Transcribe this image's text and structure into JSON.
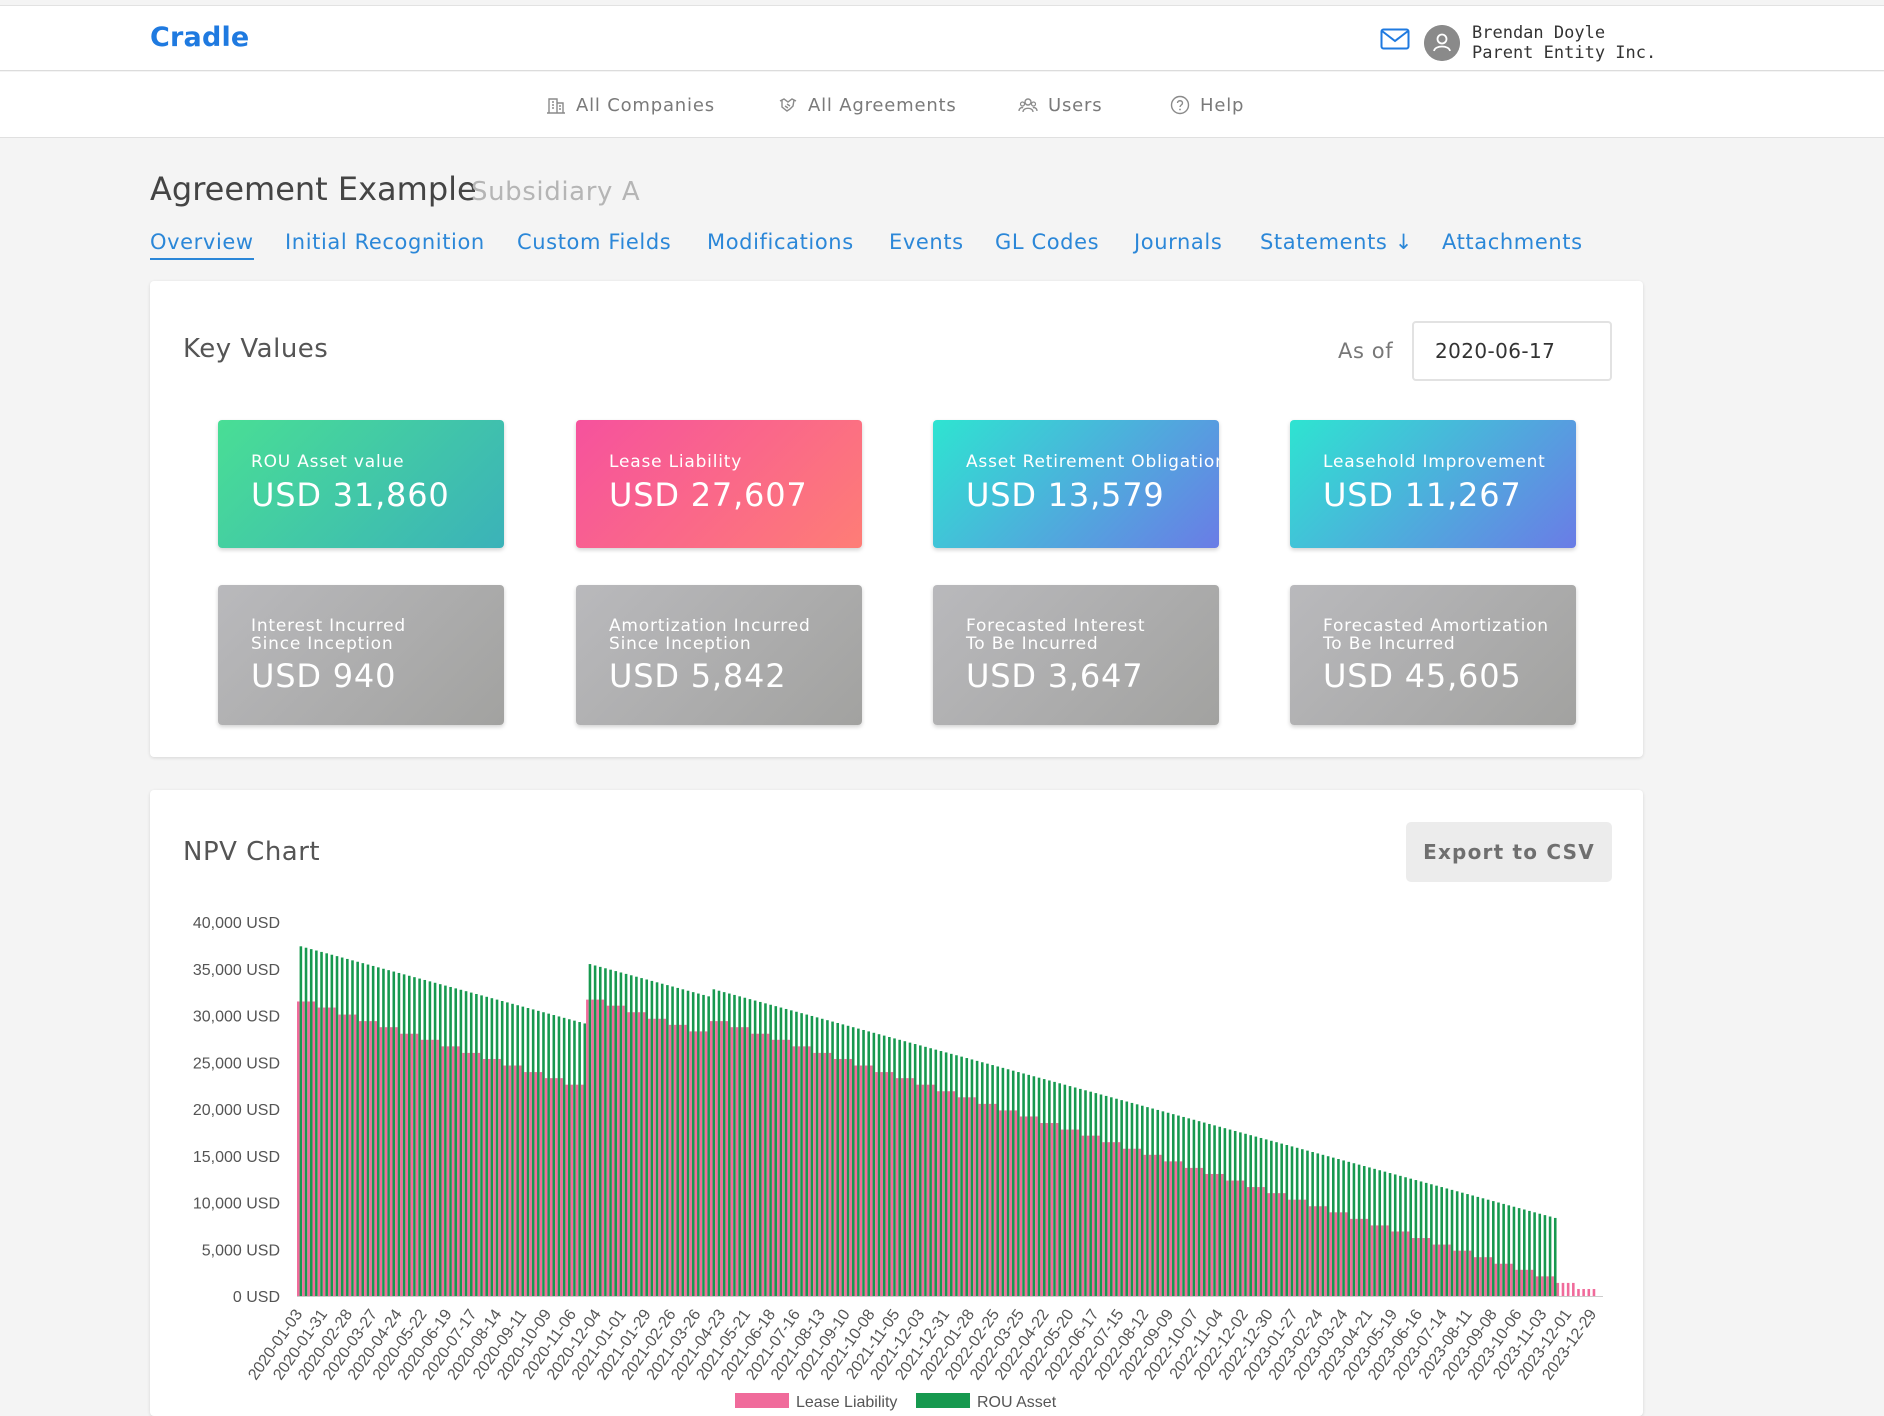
{
  "app": {
    "logo": "Cradle",
    "user_name": "Brendan Doyle",
    "user_org": "Parent Entity Inc."
  },
  "nav": {
    "items": [
      {
        "label": "All Companies",
        "icon": "building-icon"
      },
      {
        "label": "All Agreements",
        "icon": "handshake-icon"
      },
      {
        "label": "Users",
        "icon": "users-icon"
      },
      {
        "label": "Help",
        "icon": "help-circle-icon"
      }
    ]
  },
  "page": {
    "title": "Agreement Example",
    "subtitle": "Subsidiary A"
  },
  "tabs": [
    {
      "label": "Overview",
      "active": true
    },
    {
      "label": "Initial Recognition"
    },
    {
      "label": "Custom Fields"
    },
    {
      "label": "Modifications"
    },
    {
      "label": "Events"
    },
    {
      "label": "GL Codes"
    },
    {
      "label": "Journals"
    },
    {
      "label": "Statements ↓"
    },
    {
      "label": "Attachments"
    }
  ],
  "key_values": {
    "title": "Key Values",
    "as_of_label": "As of",
    "as_of_date": "2020-06-17",
    "cards": [
      {
        "label": "ROU Asset value",
        "value": "USD 31,860",
        "style": "green"
      },
      {
        "label": "Lease Liability",
        "value": "USD 27,607",
        "style": "pink"
      },
      {
        "label": "Asset Retirement Obligation",
        "value": "USD 13,579",
        "style": "blue"
      },
      {
        "label": "Leasehold Improvement",
        "value": "USD 11,267",
        "style": "blue"
      },
      {
        "label": "Interest Incurred\nSince Inception",
        "value": "USD 940",
        "style": "gray"
      },
      {
        "label": "Amortization Incurred\nSince Inception",
        "value": "USD 5,842",
        "style": "gray"
      },
      {
        "label": "Forecasted Interest\nTo Be Incurred",
        "value": "USD 3,647",
        "style": "gray"
      },
      {
        "label": "Forecasted Amortization\nTo Be Incurred",
        "value": "USD 45,605",
        "style": "gray"
      }
    ]
  },
  "npv": {
    "title": "NPV Chart",
    "export_label": "Export to CSV"
  },
  "colors": {
    "brand": "#1f7ae0",
    "tab": "#2b87d8",
    "lease_liability": "#f06b9b",
    "rou_asset": "#17994f"
  },
  "chart_data": {
    "type": "bar",
    "ylim": [
      0,
      40000
    ],
    "y_ticks": [
      "0 USD",
      "5,000 USD",
      "10,000 USD",
      "15,000 USD",
      "20,000 USD",
      "25,000 USD",
      "30,000 USD",
      "35,000 USD",
      "40,000 USD"
    ],
    "y_tick_values": [
      0,
      5000,
      10000,
      15000,
      20000,
      25000,
      30000,
      35000,
      40000
    ],
    "x_tick_labels": [
      "2020-01-03",
      "2020-01-31",
      "2020-02-28",
      "2020-03-27",
      "2020-04-24",
      "2020-05-22",
      "2020-06-19",
      "2020-07-17",
      "2020-08-14",
      "2020-09-11",
      "2020-10-09",
      "2020-11-06",
      "2020-12-04",
      "2021-01-01",
      "2021-01-29",
      "2021-02-26",
      "2021-03-26",
      "2021-04-23",
      "2021-05-21",
      "2021-06-18",
      "2021-07-16",
      "2021-08-13",
      "2021-09-10",
      "2021-10-08",
      "2021-11-05",
      "2021-12-03",
      "2021-12-31",
      "2022-01-28",
      "2022-02-25",
      "2022-03-25",
      "2022-04-22",
      "2022-05-20",
      "2022-06-17",
      "2022-07-15",
      "2022-08-12",
      "2022-09-09",
      "2022-10-07",
      "2022-11-04",
      "2022-12-02",
      "2022-12-30",
      "2023-01-27",
      "2023-02-24",
      "2023-03-24",
      "2023-04-21",
      "2023-05-19",
      "2023-06-16",
      "2023-07-14",
      "2023-08-11",
      "2023-09-08",
      "2023-10-06",
      "2023-11-03",
      "2023-12-01",
      "2023-12-29"
    ],
    "series": [
      {
        "name": "Lease Liability",
        "color": "#f06b9b",
        "values": [
          31500,
          31500,
          31500,
          31500,
          30850,
          30850,
          30850,
          30850,
          30100,
          30100,
          30100,
          30100,
          29400,
          29400,
          29400,
          29400,
          28750,
          28750,
          28750,
          28750,
          28050,
          28050,
          28050,
          28050,
          27400,
          27400,
          27400,
          27400,
          26700,
          26700,
          26700,
          26700,
          26000,
          26000,
          26000,
          26000,
          25350,
          25350,
          25350,
          25350,
          24650,
          24650,
          24650,
          24650,
          23950,
          23950,
          23950,
          23950,
          23300,
          23300,
          23300,
          23300,
          22600,
          22600,
          22600,
          22600,
          31700,
          31700,
          31700,
          31700,
          31050,
          31050,
          31050,
          31050,
          30350,
          30350,
          30350,
          30350,
          29650,
          29650,
          29650,
          29650,
          29000,
          29000,
          29000,
          29000,
          28300,
          28300,
          28300,
          28300,
          29400,
          29400,
          29400,
          29400,
          28750,
          28750,
          28750,
          28750,
          28050,
          28050,
          28050,
          28050,
          27400,
          27400,
          27400,
          27400,
          26700,
          26700,
          26700,
          26700,
          26000,
          26000,
          26000,
          26000,
          25350,
          25350,
          25350,
          25350,
          24650,
          24650,
          24650,
          24650,
          23950,
          23950,
          23950,
          23950,
          23300,
          23300,
          23300,
          23300,
          22600,
          22600,
          22600,
          22600,
          21900,
          21900,
          21900,
          21900,
          21250,
          21250,
          21250,
          21250,
          20550,
          20550,
          20550,
          20550,
          19850,
          19850,
          19850,
          19850,
          19200,
          19200,
          19200,
          19200,
          18500,
          18500,
          18500,
          18500,
          17800,
          17800,
          17800,
          17800,
          17150,
          17150,
          17150,
          17150,
          16450,
          16450,
          16450,
          16450,
          15750,
          15750,
          15750,
          15750,
          15100,
          15100,
          15100,
          15100,
          14400,
          14400,
          14400,
          14400,
          13700,
          13700,
          13700,
          13700,
          13050,
          13050,
          13050,
          13050,
          12350,
          12350,
          12350,
          12350,
          11650,
          11650,
          11650,
          11650,
          11000,
          11000,
          11000,
          11000,
          10300,
          10300,
          10300,
          10300,
          9600,
          9600,
          9600,
          9600,
          8950,
          8950,
          8950,
          8950,
          8250,
          8250,
          8250,
          8250,
          7550,
          7550,
          7550,
          7550,
          6900,
          6900,
          6900,
          6900,
          6200,
          6200,
          6200,
          6200,
          5500,
          5500,
          5500,
          5500,
          4850,
          4850,
          4850,
          4850,
          4150,
          4150,
          4150,
          4150,
          3450,
          3450,
          3450,
          3450,
          2800,
          2800,
          2800,
          2800,
          2100,
          2100,
          2100,
          2100,
          1400,
          1400,
          1400,
          1400,
          750,
          750,
          750,
          750,
          0
        ]
      },
      {
        "name": "ROU Asset",
        "color": "#17994f",
        "values": [
          37400,
          37250,
          37100,
          36950,
          36800,
          36650,
          36500,
          36350,
          36200,
          36050,
          35900,
          35750,
          35600,
          35450,
          35300,
          35150,
          35000,
          34850,
          34700,
          34550,
          34400,
          34250,
          34100,
          33950,
          33800,
          33650,
          33500,
          33350,
          33200,
          33050,
          32900,
          32750,
          32600,
          32450,
          32300,
          32150,
          32000,
          31850,
          31700,
          31550,
          31400,
          31250,
          31100,
          30950,
          30800,
          30650,
          30500,
          30350,
          30200,
          30050,
          29900,
          29750,
          29600,
          29450,
          29300,
          29150,
          35500,
          35350,
          35200,
          35050,
          34900,
          34750,
          34600,
          34450,
          34300,
          34150,
          34000,
          33850,
          33700,
          33550,
          33400,
          33250,
          33100,
          32950,
          32800,
          32650,
          32500,
          32350,
          32200,
          32050,
          32800,
          32650,
          32500,
          32350,
          32200,
          32050,
          31900,
          31750,
          31600,
          31450,
          31300,
          31150,
          31000,
          30850,
          30700,
          30550,
          30400,
          30250,
          30100,
          29950,
          29800,
          29650,
          29500,
          29350,
          29200,
          29050,
          28900,
          28750,
          28600,
          28450,
          28300,
          28150,
          28000,
          27850,
          27700,
          27550,
          27400,
          27250,
          27100,
          26950,
          26800,
          26650,
          26500,
          26350,
          26200,
          26050,
          25900,
          25750,
          25600,
          25450,
          25300,
          25150,
          25000,
          24850,
          24700,
          24550,
          24400,
          24250,
          24100,
          23950,
          23800,
          23650,
          23500,
          23350,
          23200,
          23050,
          22900,
          22750,
          22600,
          22450,
          22300,
          22150,
          22000,
          21850,
          21700,
          21550,
          21400,
          21250,
          21100,
          20950,
          20800,
          20650,
          20500,
          20350,
          20200,
          20050,
          19900,
          19750,
          19600,
          19450,
          19300,
          19150,
          19000,
          18850,
          18700,
          18550,
          18400,
          18250,
          18100,
          17950,
          17800,
          17650,
          17500,
          17350,
          17200,
          17050,
          16900,
          16750,
          16600,
          16450,
          16300,
          16150,
          16000,
          15850,
          15700,
          15550,
          15400,
          15250,
          15100,
          14950,
          14800,
          14650,
          14500,
          14350,
          14200,
          14050,
          13900,
          13750,
          13600,
          13450,
          13300,
          13150,
          13000,
          12850,
          12700,
          12550,
          12400,
          12250,
          12100,
          11950,
          11800,
          11650,
          11500,
          11350,
          11200,
          11050,
          10900,
          10750,
          10600,
          10450,
          10300,
          10150,
          10000,
          9850,
          9700,
          9550,
          9400,
          9250,
          9100,
          8950,
          8800,
          8650,
          8500,
          8350,
          0
        ]
      }
    ]
  }
}
